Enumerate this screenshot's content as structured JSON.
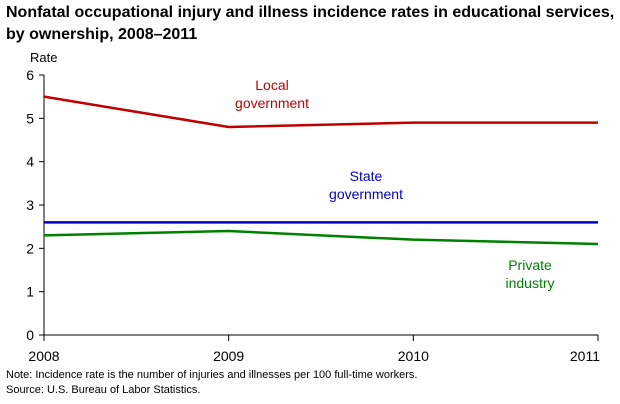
{
  "title_lines": [
    "Nonfatal occupational injury and illness incidence rates in educational services,",
    "by ownership, 2008–2011"
  ],
  "notes": [
    "Note: Incidence rate is the number of injuries and illnesses per 100 full-time workers.",
    "Source: U.S. Bureau of Labor Statistics."
  ],
  "chart_data": {
    "type": "line",
    "title": "Nonfatal occupational injury and illness incidence rates in educational services, by ownership, 2008–2011",
    "xlabel": "",
    "ylabel": "Rate",
    "x": [
      2008,
      2009,
      2010,
      2011
    ],
    "x_tick_labels": [
      "2008",
      "2009",
      "2010",
      "2011"
    ],
    "ylim": [
      0,
      6
    ],
    "y_ticks": [
      0,
      1,
      2,
      3,
      4,
      5,
      6
    ],
    "grid": false,
    "series": [
      {
        "name": "Local government",
        "label_lines": [
          "Local",
          "government"
        ],
        "color": "#C00000",
        "values": [
          5.5,
          4.8,
          4.9,
          4.9
        ]
      },
      {
        "name": "State government",
        "label_lines": [
          "State",
          "government"
        ],
        "color": "#0000C0",
        "values": [
          2.6,
          2.6,
          2.6,
          2.6
        ]
      },
      {
        "name": "Private industry",
        "label_lines": [
          "Private",
          "industry"
        ],
        "color": "#008000",
        "values": [
          2.3,
          2.4,
          2.2,
          2.1
        ]
      }
    ]
  }
}
